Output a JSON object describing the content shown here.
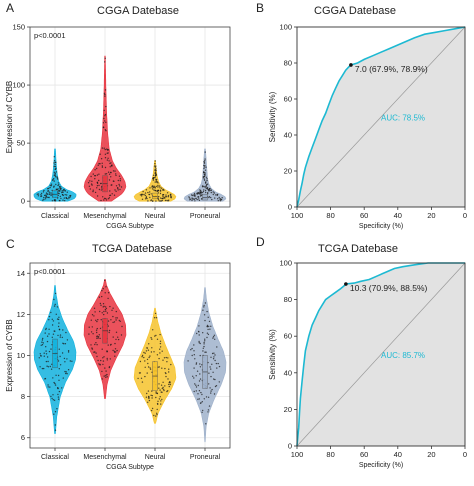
{
  "chart_data": [
    {
      "id": "A",
      "panel_label": "A",
      "type": "violin",
      "title": "CGGA Datebase",
      "annotation": "p<0.0001",
      "xlabel": "CGGA Subtype",
      "ylabel": "Expression of CYBB",
      "categories": [
        "Classical",
        "Mesenchymal",
        "Neural",
        "Proneural"
      ],
      "colors": [
        "#12B2DE",
        "#E8343F",
        "#F6C32B",
        "#9FB1CB"
      ],
      "ylim": [
        -5,
        150
      ],
      "yticks": [
        0,
        50,
        100,
        150
      ],
      "violins": [
        {
          "name": "Classical",
          "min": 0,
          "max": 45,
          "median": 6,
          "q1": 3,
          "q3": 9,
          "profile": [
            [
              0,
              0.6
            ],
            [
              2,
              0.9
            ],
            [
              4,
              1.0
            ],
            [
              6,
              1.0
            ],
            [
              8,
              0.85
            ],
            [
              10,
              0.55
            ],
            [
              13,
              0.3
            ],
            [
              17,
              0.18
            ],
            [
              22,
              0.12
            ],
            [
              28,
              0.08
            ],
            [
              35,
              0.05
            ],
            [
              45,
              0.02
            ]
          ]
        },
        {
          "name": "Mesenchymal",
          "min": 0,
          "max": 125,
          "median": 15,
          "q1": 8,
          "q3": 22,
          "profile": [
            [
              0,
              0.3
            ],
            [
              3,
              0.55
            ],
            [
              7,
              0.85
            ],
            [
              12,
              1.0
            ],
            [
              17,
              0.95
            ],
            [
              22,
              0.8
            ],
            [
              28,
              0.55
            ],
            [
              35,
              0.35
            ],
            [
              45,
              0.2
            ],
            [
              60,
              0.12
            ],
            [
              80,
              0.07
            ],
            [
              100,
              0.04
            ],
            [
              125,
              0.015
            ]
          ]
        },
        {
          "name": "Neural",
          "min": 0,
          "max": 35,
          "median": 4,
          "q1": 2,
          "q3": 7,
          "profile": [
            [
              0,
              0.75
            ],
            [
              2,
              0.95
            ],
            [
              4,
              1.0
            ],
            [
              6,
              0.9
            ],
            [
              8,
              0.7
            ],
            [
              10,
              0.48
            ],
            [
              13,
              0.28
            ],
            [
              17,
              0.17
            ],
            [
              22,
              0.1
            ],
            [
              28,
              0.06
            ],
            [
              35,
              0.02
            ]
          ]
        },
        {
          "name": "Proneural",
          "min": 0,
          "max": 45,
          "median": 3,
          "q1": 1,
          "q3": 6,
          "profile": [
            [
              0,
              0.85
            ],
            [
              2,
              1.0
            ],
            [
              4,
              0.95
            ],
            [
              6,
              0.75
            ],
            [
              8,
              0.5
            ],
            [
              11,
              0.3
            ],
            [
              15,
              0.18
            ],
            [
              20,
              0.12
            ],
            [
              27,
              0.09
            ],
            [
              35,
              0.06
            ],
            [
              45,
              0.02
            ]
          ]
        }
      ]
    },
    {
      "id": "B",
      "panel_label": "B",
      "type": "line",
      "title": "CGGA Datebase",
      "xlabel": "Specificity (%)",
      "ylabel": "Sensitivity (%)",
      "xlim": [
        100,
        0
      ],
      "ylim": [
        0,
        100
      ],
      "xticks": [
        100,
        80,
        60,
        40,
        20,
        0
      ],
      "yticks": [
        0,
        20,
        40,
        60,
        80,
        100
      ],
      "auc_label": "AUC: 78.5%",
      "threshold_label": "7.0 (67.9%, 78.9%)",
      "threshold_point": {
        "specificity": 67.9,
        "sensitivity": 78.9
      },
      "roc_curve": [
        [
          100,
          0
        ],
        [
          99,
          4
        ],
        [
          98,
          9
        ],
        [
          97,
          13
        ],
        [
          96,
          18
        ],
        [
          95,
          22
        ],
        [
          93,
          28
        ],
        [
          91,
          33
        ],
        [
          89,
          38
        ],
        [
          87,
          43
        ],
        [
          85,
          48
        ],
        [
          83,
          52
        ],
        [
          81,
          57
        ],
        [
          79,
          62
        ],
        [
          77,
          66
        ],
        [
          75,
          70
        ],
        [
          73,
          73
        ],
        [
          71,
          76
        ],
        [
          69,
          78
        ],
        [
          67.9,
          78.9
        ],
        [
          64,
          80
        ],
        [
          60,
          82
        ],
        [
          55,
          84
        ],
        [
          50,
          86
        ],
        [
          45,
          88
        ],
        [
          40,
          90
        ],
        [
          35,
          92
        ],
        [
          30,
          94
        ],
        [
          24,
          96
        ],
        [
          18,
          97
        ],
        [
          12,
          98
        ],
        [
          6,
          99
        ],
        [
          0,
          100
        ]
      ]
    },
    {
      "id": "C",
      "panel_label": "C",
      "type": "violin",
      "title": "TCGA Datebase",
      "annotation": "p<0.0001",
      "xlabel": "CGGA Subtype",
      "ylabel": "Expression of CYBB",
      "categories": [
        "Classical",
        "Mesenchymal",
        "Neural",
        "Proneural"
      ],
      "colors": [
        "#12B2DE",
        "#E8343F",
        "#F6C32B",
        "#9FB1CB"
      ],
      "ylim": [
        5.5,
        14.5
      ],
      "yticks": [
        6,
        8,
        10,
        12,
        14
      ],
      "violins": [
        {
          "name": "Classical",
          "min": 6.2,
          "max": 13.4,
          "median": 10.1,
          "q1": 9.4,
          "q3": 10.8,
          "profile": [
            [
              6.2,
              0.02
            ],
            [
              7,
              0.08
            ],
            [
              8,
              0.25
            ],
            [
              8.7,
              0.5
            ],
            [
              9.3,
              0.82
            ],
            [
              9.8,
              0.98
            ],
            [
              10.2,
              1.0
            ],
            [
              10.7,
              0.88
            ],
            [
              11.2,
              0.62
            ],
            [
              11.8,
              0.35
            ],
            [
              12.4,
              0.15
            ],
            [
              13,
              0.05
            ],
            [
              13.4,
              0.02
            ]
          ]
        },
        {
          "name": "Mesenchymal",
          "min": 7.9,
          "max": 13.7,
          "median": 11.2,
          "q1": 10.6,
          "q3": 11.8,
          "profile": [
            [
              7.9,
              0.02
            ],
            [
              8.6,
              0.1
            ],
            [
              9.3,
              0.28
            ],
            [
              9.9,
              0.55
            ],
            [
              10.5,
              0.85
            ],
            [
              11,
              1.0
            ],
            [
              11.5,
              0.98
            ],
            [
              12,
              0.82
            ],
            [
              12.5,
              0.52
            ],
            [
              13,
              0.25
            ],
            [
              13.4,
              0.08
            ],
            [
              13.7,
              0.02
            ]
          ]
        },
        {
          "name": "Neural",
          "min": 6.7,
          "max": 12.3,
          "median": 9.0,
          "q1": 8.3,
          "q3": 9.7,
          "profile": [
            [
              6.7,
              0.03
            ],
            [
              7.2,
              0.15
            ],
            [
              7.8,
              0.45
            ],
            [
              8.4,
              0.8
            ],
            [
              8.9,
              1.0
            ],
            [
              9.4,
              0.95
            ],
            [
              9.9,
              0.75
            ],
            [
              10.5,
              0.5
            ],
            [
              11.1,
              0.28
            ],
            [
              11.7,
              0.12
            ],
            [
              12.3,
              0.02
            ]
          ]
        },
        {
          "name": "Proneural",
          "min": 5.8,
          "max": 13.3,
          "median": 9.2,
          "q1": 8.4,
          "q3": 10.0,
          "profile": [
            [
              5.8,
              0.01
            ],
            [
              6.5,
              0.05
            ],
            [
              7.2,
              0.18
            ],
            [
              7.9,
              0.45
            ],
            [
              8.6,
              0.78
            ],
            [
              9.2,
              0.98
            ],
            [
              9.7,
              1.0
            ],
            [
              10.2,
              0.88
            ],
            [
              10.8,
              0.62
            ],
            [
              11.4,
              0.38
            ],
            [
              12.1,
              0.18
            ],
            [
              12.8,
              0.06
            ],
            [
              13.3,
              0.02
            ]
          ]
        }
      ]
    },
    {
      "id": "D",
      "panel_label": "D",
      "type": "line",
      "title": "TCGA Datebase",
      "xlabel": "Specificity (%)",
      "ylabel": "Sensitivity (%)",
      "xlim": [
        100,
        0
      ],
      "ylim": [
        0,
        100
      ],
      "xticks": [
        100,
        80,
        60,
        40,
        20,
        0
      ],
      "yticks": [
        0,
        20,
        40,
        60,
        80,
        100
      ],
      "auc_label": "AUC: 85.7%",
      "threshold_label": "10.3 (70.9%, 88.5%)",
      "threshold_point": {
        "specificity": 70.9,
        "sensitivity": 88.5
      },
      "roc_curve": [
        [
          100,
          0
        ],
        [
          99.5,
          5
        ],
        [
          99,
          10
        ],
        [
          98.5,
          18
        ],
        [
          98,
          26
        ],
        [
          97,
          35
        ],
        [
          96,
          44
        ],
        [
          95,
          52
        ],
        [
          93,
          60
        ],
        [
          91,
          66
        ],
        [
          89,
          70
        ],
        [
          87,
          74
        ],
        [
          85,
          77
        ],
        [
          83,
          80
        ],
        [
          80,
          82
        ],
        [
          77,
          84
        ],
        [
          74,
          86
        ],
        [
          72,
          87.5
        ],
        [
          70.9,
          88.5
        ],
        [
          66,
          89
        ],
        [
          62,
          90
        ],
        [
          57,
          91
        ],
        [
          52,
          93
        ],
        [
          47,
          95
        ],
        [
          42,
          97
        ],
        [
          37,
          98
        ],
        [
          30,
          99
        ],
        [
          22,
          100
        ],
        [
          10,
          100
        ],
        [
          0,
          100
        ]
      ]
    }
  ]
}
